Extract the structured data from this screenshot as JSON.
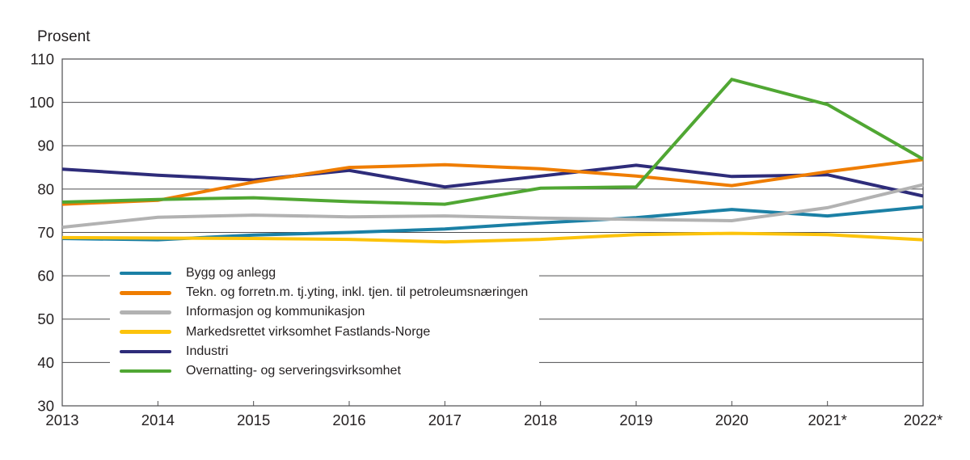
{
  "colors": {
    "background": "#ffffff",
    "text": "#231f20",
    "grid": "#4d4d4f"
  },
  "chart_data": {
    "type": "line",
    "title": "",
    "y_axis_title": "Prosent",
    "xlabel": "",
    "ylabel": "Prosent",
    "categories": [
      "2013",
      "2014",
      "2015",
      "2016",
      "2017",
      "2018",
      "2019",
      "2020",
      "2021*",
      "2022*"
    ],
    "y_axis": {
      "min": 30,
      "max": 110,
      "step": 10
    },
    "y_tick_labels": [
      "110",
      "100",
      "90",
      "80",
      "70",
      "60",
      "50",
      "40",
      "30"
    ],
    "grid": "horizontal",
    "plot_border": true,
    "legend_position": "inside-bottom-left",
    "series": [
      {
        "name": "Bygg og anlegg",
        "color": "#1b80a5",
        "values": [
          68.6,
          68.3,
          69.4,
          70.0,
          70.8,
          72.2,
          73.4,
          75.3,
          73.8,
          75.9
        ]
      },
      {
        "name": "Tekn. og forretn.m. tj.yting, inkl. tjen. til petroleumsnæringen",
        "color": "#ef7d00",
        "values": [
          76.5,
          77.4,
          81.6,
          85.0,
          85.6,
          84.7,
          83.0,
          80.8,
          84.0,
          86.8
        ]
      },
      {
        "name": "Informasjon og kommunikasjon",
        "color": "#b2b2b2",
        "values": [
          71.2,
          73.5,
          74.0,
          73.6,
          73.8,
          73.3,
          73.0,
          72.7,
          75.7,
          81.0
        ]
      },
      {
        "name": "Markedsrettet virksomhet Fastlands-Norge",
        "color": "#fcc30b",
        "values": [
          68.8,
          68.7,
          68.6,
          68.4,
          67.8,
          68.4,
          69.5,
          69.8,
          69.5,
          68.3
        ]
      },
      {
        "name": "Industri",
        "color": "#2e2c7a",
        "values": [
          84.6,
          83.2,
          82.1,
          84.3,
          80.5,
          83.0,
          85.5,
          82.9,
          83.3,
          78.4
        ]
      },
      {
        "name": "Overnatting- og serveringsvirksomhet",
        "color": "#50a733",
        "values": [
          77.0,
          77.6,
          78.0,
          77.1,
          76.5,
          80.2,
          80.5,
          105.3,
          99.5,
          86.9
        ]
      }
    ]
  }
}
